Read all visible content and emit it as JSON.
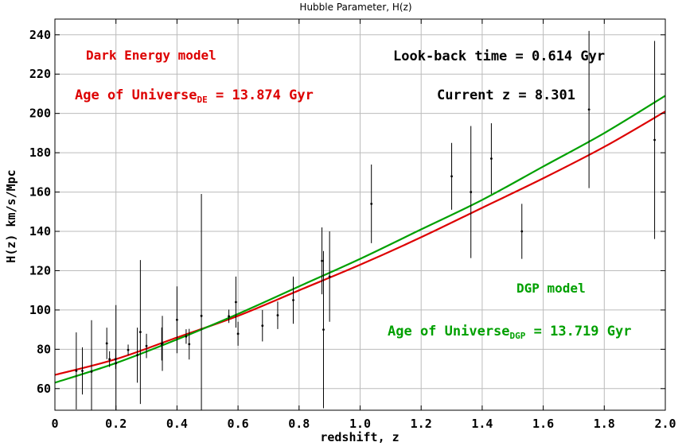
{
  "chart_data": {
    "type": "scatter",
    "title": "Hubble Parameter, H(z)",
    "xlabel": "redshift, z",
    "ylabel": "H(z) km/s/Mpc",
    "xlim": [
      0,
      2.0
    ],
    "ylim": [
      49,
      248
    ],
    "x_ticks": [
      0,
      0.2,
      0.4,
      0.6,
      0.8,
      1.0,
      1.2,
      1.4,
      1.6,
      1.8,
      2.0
    ],
    "x_tick_labels": [
      "0",
      "0.2",
      "0.4",
      "0.6",
      "0.8",
      "1.0",
      "1.2",
      "1.4",
      "1.6",
      "1.8",
      "2.0"
    ],
    "y_ticks": [
      60,
      80,
      100,
      120,
      140,
      160,
      180,
      200,
      220,
      240
    ],
    "y_tick_labels": [
      "60",
      "80",
      "100",
      "120",
      "140",
      "160",
      "180",
      "200",
      "220",
      "240"
    ],
    "grid": true,
    "annotations": {
      "de_model": "Dark Energy model",
      "de_age_prefix": "Age of Universe",
      "de_age_sub": "DE",
      "de_age_value": " = 13.874 Gyr",
      "lookback": "Look-back time = 0.614 Gyr",
      "current_z": "Current z = 8.301",
      "dgp_model": "DGP model",
      "dgp_age_prefix": "Age of Universe",
      "dgp_age_sub": "DGP",
      "dgp_age_value": " = 13.719 Gyr"
    },
    "colors": {
      "de": "#dd0000",
      "dgp": "#00a000",
      "points": "#000000",
      "grid": "#bbbbbb"
    },
    "series": [
      {
        "type": "line",
        "color": "#dd0000",
        "x": [
          0,
          0.2,
          0.4,
          0.6,
          0.8,
          1.0,
          1.2,
          1.4,
          1.6,
          1.8,
          2.0
        ],
        "y": [
          67,
          75,
          86,
          97,
          110,
          123,
          137,
          152,
          167,
          183,
          201
        ]
      },
      {
        "type": "line",
        "color": "#00a000",
        "x": [
          0,
          0.2,
          0.4,
          0.6,
          0.8,
          1.0,
          1.2,
          1.4,
          1.6,
          1.8,
          2.0
        ],
        "y": [
          63,
          73,
          85,
          98,
          112,
          126,
          141,
          156,
          173,
          190,
          209
        ]
      },
      {
        "type": "errorbar",
        "color": "#000000",
        "x": [
          0.07,
          0.09,
          0.12,
          0.17,
          0.179,
          0.199,
          0.2,
          0.24,
          0.27,
          0.28,
          0.3,
          0.35,
          0.352,
          0.4,
          0.43,
          0.44,
          0.48,
          0.57,
          0.593,
          0.6,
          0.68,
          0.73,
          0.781,
          0.875,
          0.88,
          0.9,
          1.037,
          1.3,
          1.363,
          1.43,
          1.53,
          1.75,
          1.965
        ],
        "y": [
          69,
          69,
          68.6,
          83,
          75,
          75,
          72.9,
          79.7,
          77,
          88.8,
          81.7,
          82.7,
          83,
          95,
          86.5,
          82.6,
          97,
          96.8,
          104,
          87.9,
          92,
          97.3,
          105,
          125,
          90,
          117,
          154,
          168,
          160,
          177,
          140,
          202,
          186.5
        ],
        "err": [
          19.6,
          12,
          26.2,
          8,
          4,
          5,
          29.6,
          2.7,
          14,
          36.6,
          6.2,
          8.4,
          14,
          17,
          3.7,
          7.8,
          62,
          3.4,
          13,
          6.1,
          8,
          7,
          12,
          17,
          40,
          23,
          20,
          17,
          33.6,
          18,
          14,
          40,
          50.4
        ]
      }
    ]
  }
}
